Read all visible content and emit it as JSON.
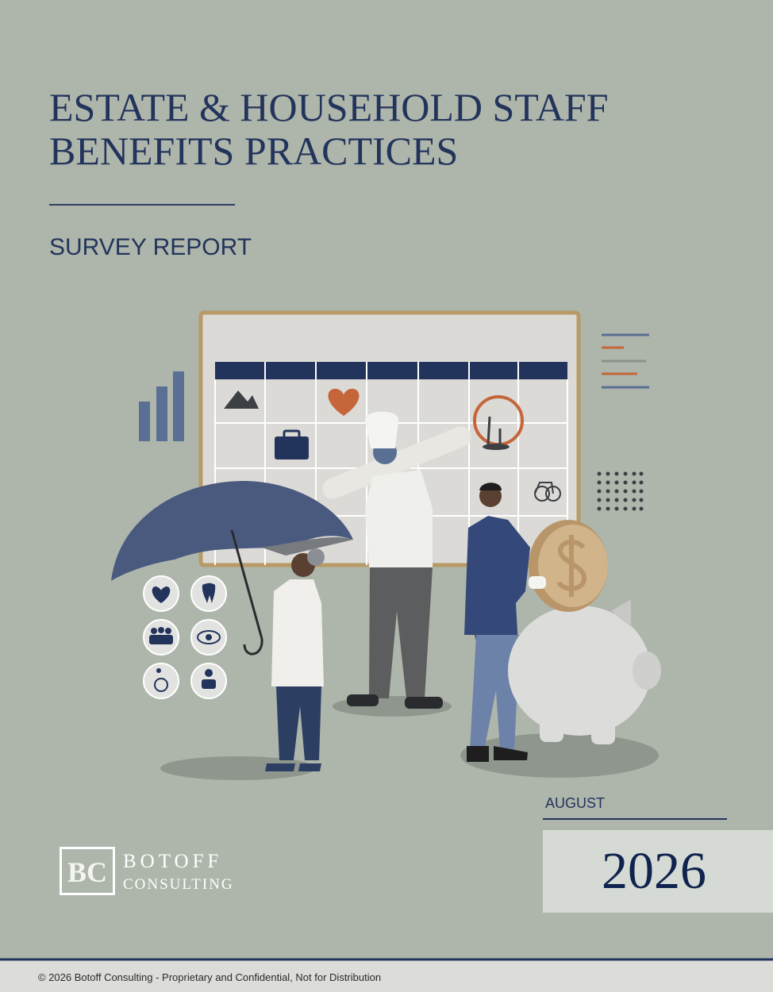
{
  "header": {
    "title_lines": [
      "ESTATE & HOUSEHOLD STAFF",
      "BENEFITS PRACTICES"
    ],
    "subtitle": "SURVEY REPORT"
  },
  "date": {
    "month": "AUGUST",
    "year": "2026"
  },
  "logo": {
    "mark": "BC",
    "name": "BOTOFF",
    "tagline": "CONSULTING"
  },
  "footer": {
    "text": "© 2026 Botoff Consulting - Proprietary and Confidential, Not for Distribution"
  }
}
